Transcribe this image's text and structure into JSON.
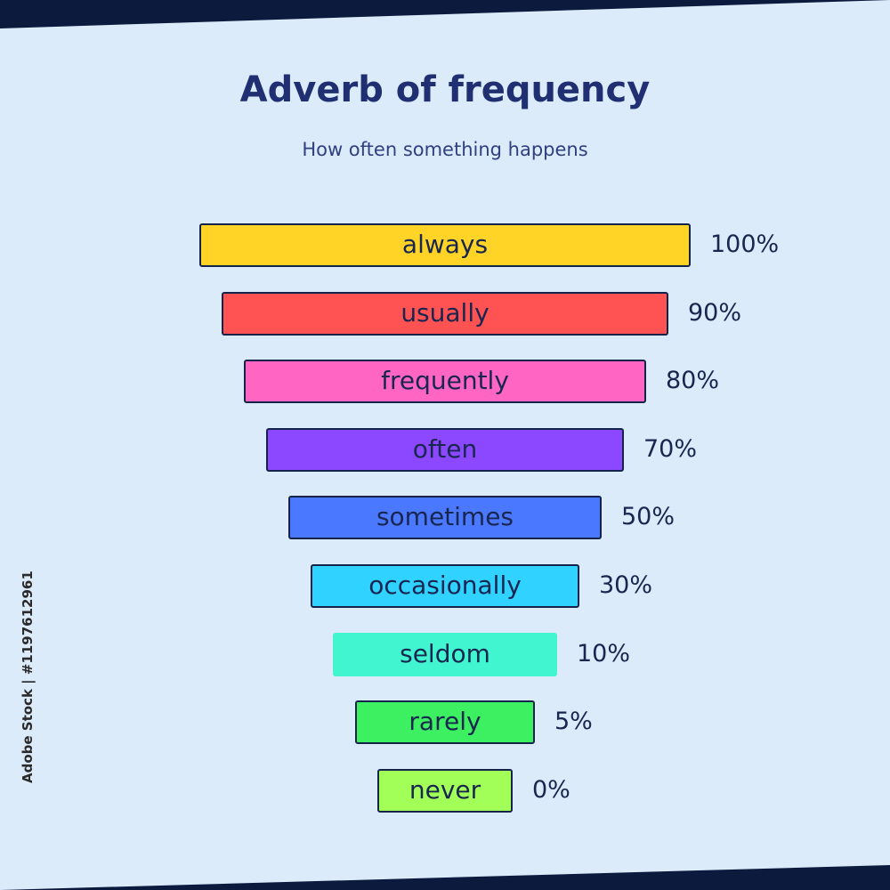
{
  "title": "Adverb of frequency",
  "subtitle": "How often something happens",
  "stock_id": "Adobe Stock | #1197612961",
  "chart_data": {
    "type": "bar",
    "orientation": "horizontal",
    "layout": "centered-funnel",
    "categories": [
      "always",
      "usually",
      "frequently",
      "often",
      "sometimes",
      "occasionally",
      "seldom",
      "rarely",
      "never"
    ],
    "value_labels": [
      "100%",
      "90%",
      "80%",
      "70%",
      "50%",
      "30%",
      "10%",
      "5%",
      "0%"
    ],
    "values": [
      100,
      90,
      80,
      70,
      50,
      30,
      10,
      5,
      0
    ],
    "colors": [
      "#ffd426",
      "#ff5252",
      "#ff66c4",
      "#8c48ff",
      "#4a78ff",
      "#30d2ff",
      "#40f5cf",
      "#3cf061",
      "#a2ff58"
    ],
    "outlined": [
      true,
      true,
      true,
      true,
      true,
      true,
      false,
      true,
      true
    ],
    "legend": "none",
    "grid": false
  }
}
